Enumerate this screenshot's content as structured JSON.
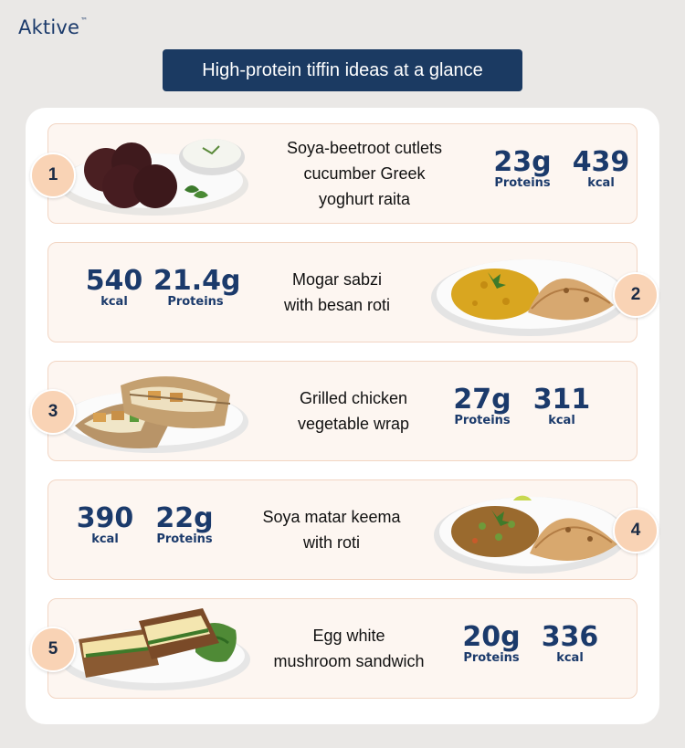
{
  "brand": {
    "name": "Aktive",
    "mark": "™"
  },
  "title": "High-protein tiffin ideas at a glance",
  "cards": [
    {
      "number": "1",
      "dish": [
        "Soya-beetroot cutlets",
        "cucumber Greek",
        "yoghurt raita"
      ],
      "protein": "23g",
      "protein_label": "Proteins",
      "kcal": "439",
      "kcal_label": "kcal"
    },
    {
      "number": "2",
      "dish": [
        "Mogar sabzi",
        "with besan roti"
      ],
      "protein": "21.4g",
      "protein_label": "Proteins",
      "kcal": "540",
      "kcal_label": "kcal"
    },
    {
      "number": "3",
      "dish": [
        "Grilled chicken",
        "vegetable wrap"
      ],
      "protein": "27g",
      "protein_label": "Proteins",
      "kcal": "311",
      "kcal_label": "kcal"
    },
    {
      "number": "4",
      "dish": [
        "Soya matar keema",
        "with roti"
      ],
      "protein": "22g",
      "protein_label": "Proteins",
      "kcal": "390",
      "kcal_label": "kcal"
    },
    {
      "number": "5",
      "dish": [
        "Egg white",
        "mushroom sandwich"
      ],
      "protein": "20g",
      "protein_label": "Proteins",
      "kcal": "336",
      "kcal_label": "kcal"
    }
  ],
  "colors": {
    "navy": "#1b3a62",
    "badge": "#f9d3b5",
    "card_bg": "#fdf6f1",
    "card_border": "#f2d5c3"
  }
}
